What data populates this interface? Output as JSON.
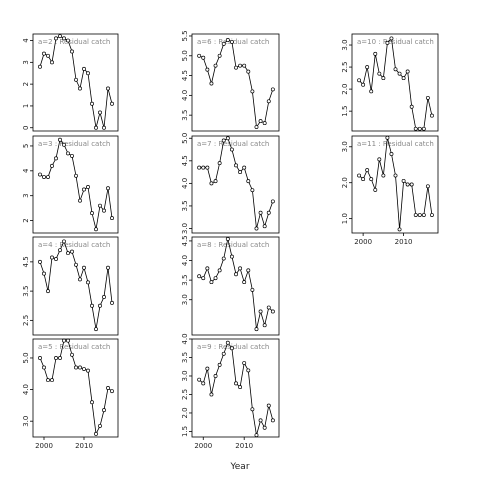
{
  "xlabel": "Year",
  "chart_data": [
    {
      "type": "line",
      "title": "a=2 : Residual catch",
      "x": [
        1999,
        2000,
        2001,
        2002,
        2003,
        2004,
        2005,
        2006,
        2007,
        2008,
        2009,
        2010,
        2011,
        2012,
        2013,
        2014,
        2015,
        2016,
        2017
      ],
      "values": [
        2.8,
        3.4,
        3.3,
        3.0,
        4.1,
        4.2,
        4.1,
        4.0,
        3.5,
        2.2,
        1.8,
        2.7,
        2.5,
        1.1,
        0.0,
        0.7,
        0.0,
        1.8,
        1.1
      ],
      "xlim": [
        1997.25,
        2018.5
      ],
      "ylim": [
        -0.15,
        4.3
      ],
      "yticks": [
        0,
        1,
        2,
        3,
        4
      ]
    },
    {
      "type": "line",
      "title": "a=3 : Residual catch",
      "x": [
        1999,
        2000,
        2001,
        2002,
        2003,
        2004,
        2005,
        2006,
        2007,
        2008,
        2009,
        2010,
        2011,
        2012,
        2013,
        2014,
        2015,
        2016,
        2017
      ],
      "values": [
        3.85,
        3.75,
        3.75,
        4.2,
        4.5,
        5.25,
        5.05,
        4.7,
        4.6,
        3.8,
        2.8,
        3.25,
        3.35,
        2.3,
        1.65,
        2.6,
        2.4,
        3.3,
        2.1
      ],
      "xlim": [
        1997.25,
        2018.5
      ],
      "ylim": [
        1.5,
        5.4
      ],
      "yticks": [
        2,
        3,
        4,
        5
      ]
    },
    {
      "type": "line",
      "title": "a=4 : Residual catch",
      "x": [
        1999,
        2000,
        2001,
        2002,
        2003,
        2004,
        2005,
        2006,
        2007,
        2008,
        2009,
        2010,
        2011,
        2012,
        2013,
        2014,
        2015,
        2016,
        2017
      ],
      "values": [
        4.5,
        4.1,
        3.5,
        4.65,
        4.6,
        4.9,
        5.2,
        4.8,
        4.85,
        4.4,
        3.9,
        4.3,
        3.8,
        3.0,
        2.2,
        3.0,
        3.3,
        4.3,
        3.1
      ],
      "xlim": [
        1997.25,
        2018.5
      ],
      "ylim": [
        2.0,
        5.35
      ],
      "yticks": [
        2.5,
        3.5,
        4.5
      ]
    },
    {
      "type": "line",
      "title": "a=5 : Residual catch",
      "x": [
        1999,
        2000,
        2001,
        2002,
        2003,
        2004,
        2005,
        2006,
        2007,
        2008,
        2009,
        2010,
        2011,
        2012,
        2013,
        2014,
        2015,
        2016,
        2017
      ],
      "values": [
        5.0,
        4.7,
        4.3,
        4.3,
        5.0,
        5.0,
        5.55,
        5.55,
        5.1,
        4.7,
        4.7,
        4.65,
        4.6,
        3.6,
        2.6,
        2.85,
        3.35,
        4.05,
        3.95
      ],
      "xlim": [
        1997.25,
        2018.5
      ],
      "ylim": [
        2.5,
        5.6
      ],
      "yticks": [
        {
          "value": 3,
          "label": "3.0"
        },
        {
          "value": 4,
          "label": "4.0"
        },
        {
          "value": 5,
          "label": "5.0"
        }
      ],
      "xticks": [
        2000,
        2010
      ]
    },
    {
      "type": "line",
      "title": "a=6 : Residual catch",
      "x": [
        1999,
        2000,
        2001,
        2002,
        2003,
        2004,
        2005,
        2006,
        2007,
        2008,
        2009,
        2010,
        2011,
        2012,
        2013,
        2014,
        2015,
        2016,
        2017
      ],
      "values": [
        5.0,
        4.95,
        4.65,
        4.3,
        4.75,
        5.0,
        5.3,
        5.4,
        5.35,
        4.7,
        4.75,
        4.75,
        4.6,
        4.1,
        3.2,
        3.35,
        3.3,
        3.85,
        4.15
      ],
      "xlim": [
        1997.25,
        2018.5
      ],
      "ylim": [
        3.1,
        5.55
      ],
      "yticks": [
        3.5,
        {
          "value": 4,
          "label": "4.0"
        },
        4.5,
        {
          "value": 5,
          "label": "5.0"
        },
        5.5
      ]
    },
    {
      "type": "line",
      "title": "a=7 : Residual catch",
      "x": [
        1999,
        2000,
        2001,
        2002,
        2003,
        2004,
        2005,
        2006,
        2007,
        2008,
        2009,
        2010,
        2011,
        2012,
        2013,
        2014,
        2015,
        2016,
        2017
      ],
      "values": [
        4.35,
        4.35,
        4.35,
        4.0,
        4.05,
        4.45,
        4.95,
        5.0,
        4.75,
        4.4,
        4.25,
        4.35,
        4.05,
        3.85,
        3.0,
        3.35,
        3.05,
        3.35,
        3.6
      ],
      "xlim": [
        1997.25,
        2018.5
      ],
      "ylim": [
        2.9,
        5.05
      ],
      "yticks": [
        {
          "value": 3,
          "label": "3.0"
        },
        3.5,
        {
          "value": 4,
          "label": "4.0"
        },
        4.5,
        {
          "value": 5,
          "label": "5.0"
        }
      ]
    },
    {
      "type": "line",
      "title": "a=8 : Residual catch",
      "x": [
        1999,
        2000,
        2001,
        2002,
        2003,
        2004,
        2005,
        2006,
        2007,
        2008,
        2009,
        2010,
        2011,
        2012,
        2013,
        2014,
        2015,
        2016,
        2017
      ],
      "values": [
        3.6,
        3.55,
        3.8,
        3.45,
        3.55,
        3.75,
        4.05,
        4.55,
        4.1,
        3.65,
        3.8,
        3.45,
        3.75,
        3.25,
        2.25,
        2.7,
        2.35,
        2.8,
        2.7
      ],
      "xlim": [
        1997.25,
        2018.5
      ],
      "ylim": [
        2.1,
        4.6
      ],
      "yticks": [
        {
          "value": 3,
          "label": "3.0"
        },
        3.5,
        {
          "value": 4,
          "label": "4.0"
        },
        4.5
      ]
    },
    {
      "type": "line",
      "title": "a=9 : Residual catch",
      "x": [
        1999,
        2000,
        2001,
        2002,
        2003,
        2004,
        2005,
        2006,
        2007,
        2008,
        2009,
        2010,
        2011,
        2012,
        2013,
        2014,
        2015,
        2016,
        2017
      ],
      "values": [
        2.9,
        2.8,
        3.2,
        2.5,
        3.0,
        3.3,
        3.6,
        3.9,
        3.75,
        2.8,
        2.7,
        3.35,
        3.15,
        2.1,
        1.4,
        1.8,
        1.6,
        2.2,
        1.8
      ],
      "xlim": [
        1997.25,
        2018.5
      ],
      "ylim": [
        1.35,
        4.0
      ],
      "yticks": [
        1.5,
        {
          "value": 2,
          "label": "2.0"
        },
        2.5,
        {
          "value": 3,
          "label": "3.0"
        },
        3.5,
        {
          "value": 4,
          "label": "4.0"
        }
      ],
      "xticks": [
        2000,
        2010
      ]
    },
    {
      "type": "line",
      "title": "a=10 : Residual catch",
      "x": [
        1999,
        2000,
        2001,
        2002,
        2003,
        2004,
        2005,
        2006,
        2007,
        2008,
        2009,
        2010,
        2011,
        2012,
        2013,
        2014,
        2015,
        2016,
        2017
      ],
      "values": [
        2.2,
        2.1,
        2.5,
        1.95,
        2.8,
        2.35,
        2.25,
        3.05,
        3.15,
        2.45,
        2.35,
        2.25,
        2.4,
        1.6,
        1.1,
        1.1,
        1.1,
        1.8,
        1.4
      ],
      "xlim": [
        1997.25,
        2018.5
      ],
      "ylim": [
        1.05,
        3.25
      ],
      "yticks": [
        1.5,
        {
          "value": 2,
          "label": "2.0"
        },
        2.5,
        {
          "value": 3,
          "label": "3.0"
        }
      ]
    },
    {
      "type": "line",
      "title": "a=11 : Residual catch",
      "x": [
        1999,
        2000,
        2001,
        2002,
        2003,
        2004,
        2005,
        2006,
        2007,
        2008,
        2009,
        2010,
        2011,
        2012,
        2013,
        2014,
        2015,
        2016,
        2017
      ],
      "values": [
        2.2,
        2.1,
        2.35,
        2.1,
        1.8,
        2.65,
        2.2,
        3.25,
        2.8,
        2.2,
        0.7,
        2.05,
        1.95,
        1.95,
        1.1,
        1.1,
        1.1,
        1.9,
        1.1
      ],
      "xlim": [
        1997.25,
        2018.5
      ],
      "ylim": [
        0.6,
        3.3
      ],
      "yticks": [
        {
          "value": 1,
          "label": "1.0"
        },
        {
          "value": 2,
          "label": "2.0"
        },
        {
          "value": 3,
          "label": "3.0"
        }
      ],
      "xticks": [
        2000,
        2010
      ]
    }
  ]
}
